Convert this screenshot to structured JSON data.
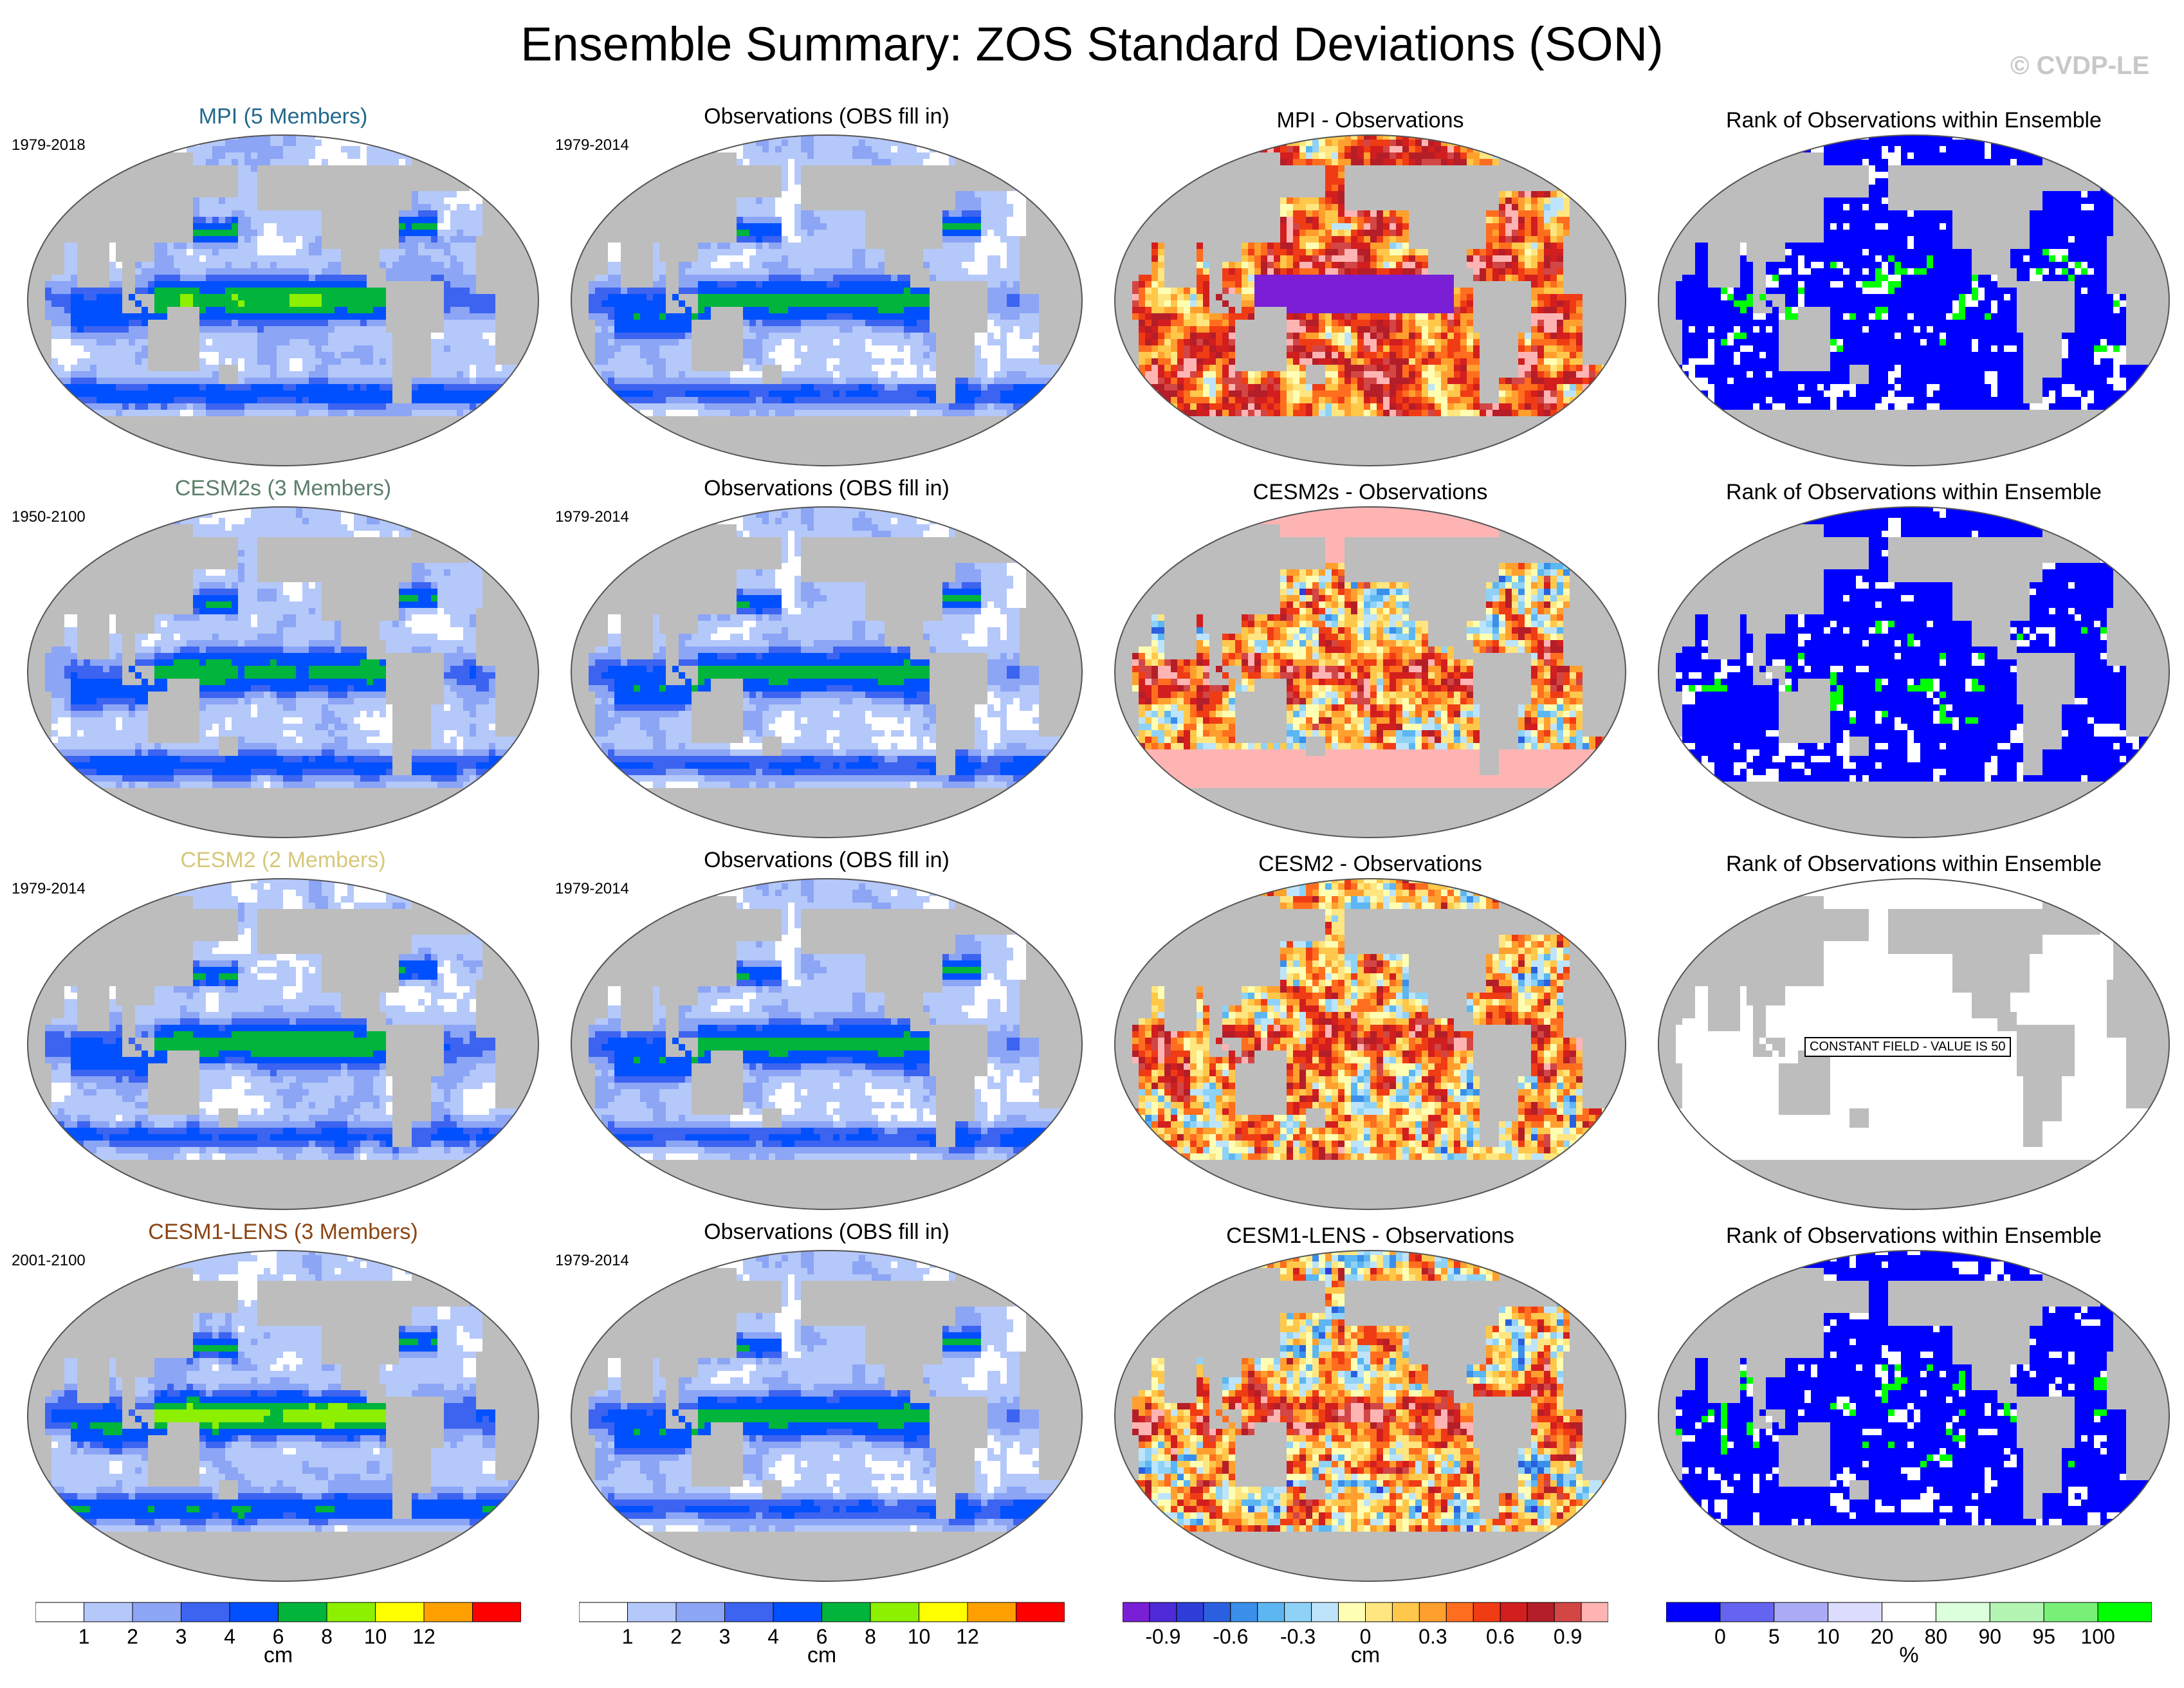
{
  "title": "Ensemble Summary: ZOS Standard Deviations (SON)",
  "watermark": "© CVDP-LE",
  "colors": {
    "land": "#bdbdbd",
    "ocean_base": "#9db4f3",
    "title_mpi": "#23688c",
    "title_cesm2s": "#5c7f6a",
    "title_cesm2": "#d7c77a",
    "title_lens": "#8b4513"
  },
  "chart_data": {
    "type": "heatmap",
    "description": "global maps of sea surface height (ZOS) standard deviation, September-November",
    "rows": [
      {
        "model_title": "MPI (5 Members)",
        "model_period": "1979-2018",
        "obs_title": "Observations (OBS fill in)",
        "obs_period": "1979-2014",
        "diff_title": "MPI - Observations",
        "rank_title": "Rank of Observations within Ensemble",
        "rank_note": ""
      },
      {
        "model_title": "CESM2s (3 Members)",
        "model_period": "1950-2100",
        "obs_title": "Observations (OBS fill in)",
        "obs_period": "1979-2014",
        "diff_title": "CESM2s - Observations",
        "rank_title": "Rank of Observations within Ensemble",
        "rank_note": ""
      },
      {
        "model_title": "CESM2 (2 Members)",
        "model_period": "1979-2014",
        "obs_title": "Observations (OBS fill in)",
        "obs_period": "1979-2014",
        "diff_title": "CESM2 - Observations",
        "rank_title": "Rank of Observations within Ensemble",
        "rank_note": "CONSTANT FIELD - VALUE IS 50"
      },
      {
        "model_title": "CESM1-LENS (3 Members)",
        "model_period": "2001-2100",
        "obs_title": "Observations (OBS fill in)",
        "obs_period": "1979-2014",
        "diff_title": "CESM1-LENS - Observations",
        "rank_title": "Rank of Observations within Ensemble",
        "rank_note": ""
      }
    ],
    "colorbars": [
      {
        "name": "model-sd",
        "unit": "cm",
        "ticks": [
          "1",
          "2",
          "3",
          "4",
          "6",
          "8",
          "10",
          "12"
        ],
        "colors": [
          "#ffffff",
          "#b4c8fa",
          "#8ca5f5",
          "#3c64f0",
          "#0050ff",
          "#00b43c",
          "#8cf000",
          "#ffff00",
          "#ffa000",
          "#ff0000"
        ]
      },
      {
        "name": "obs-sd",
        "unit": "cm",
        "ticks": [
          "1",
          "2",
          "3",
          "4",
          "6",
          "8",
          "10",
          "12"
        ],
        "colors": [
          "#ffffff",
          "#b4c8fa",
          "#8ca5f5",
          "#3c64f0",
          "#0050ff",
          "#00b43c",
          "#8cf000",
          "#ffff00",
          "#ffa000",
          "#ff0000"
        ]
      },
      {
        "name": "difference",
        "unit": "cm",
        "ticks": [
          "-0.9",
          "-0.6",
          "-0.3",
          "0",
          "0.3",
          "0.6",
          "0.9"
        ],
        "colors": [
          "#7a1fd6",
          "#4e2ad9",
          "#2f3dd9",
          "#2a60e0",
          "#3a8fea",
          "#5cb6f2",
          "#8ed2f7",
          "#bde4fa",
          "#ffffb4",
          "#ffe680",
          "#ffc84a",
          "#ffa02e",
          "#ff6e1e",
          "#f03c14",
          "#d21e1e",
          "#b41e28",
          "#d24646",
          "#ffb4b4"
        ]
      },
      {
        "name": "rank",
        "unit": "%",
        "ticks": [
          "0",
          "5",
          "10",
          "20",
          "80",
          "90",
          "95",
          "100"
        ],
        "colors": [
          "#0000ff",
          "#6464f0",
          "#aaaaf5",
          "#dcdcff",
          "#ffffff",
          "#dcffdc",
          "#b4f5b4",
          "#78f078",
          "#00ff00"
        ]
      }
    ]
  }
}
